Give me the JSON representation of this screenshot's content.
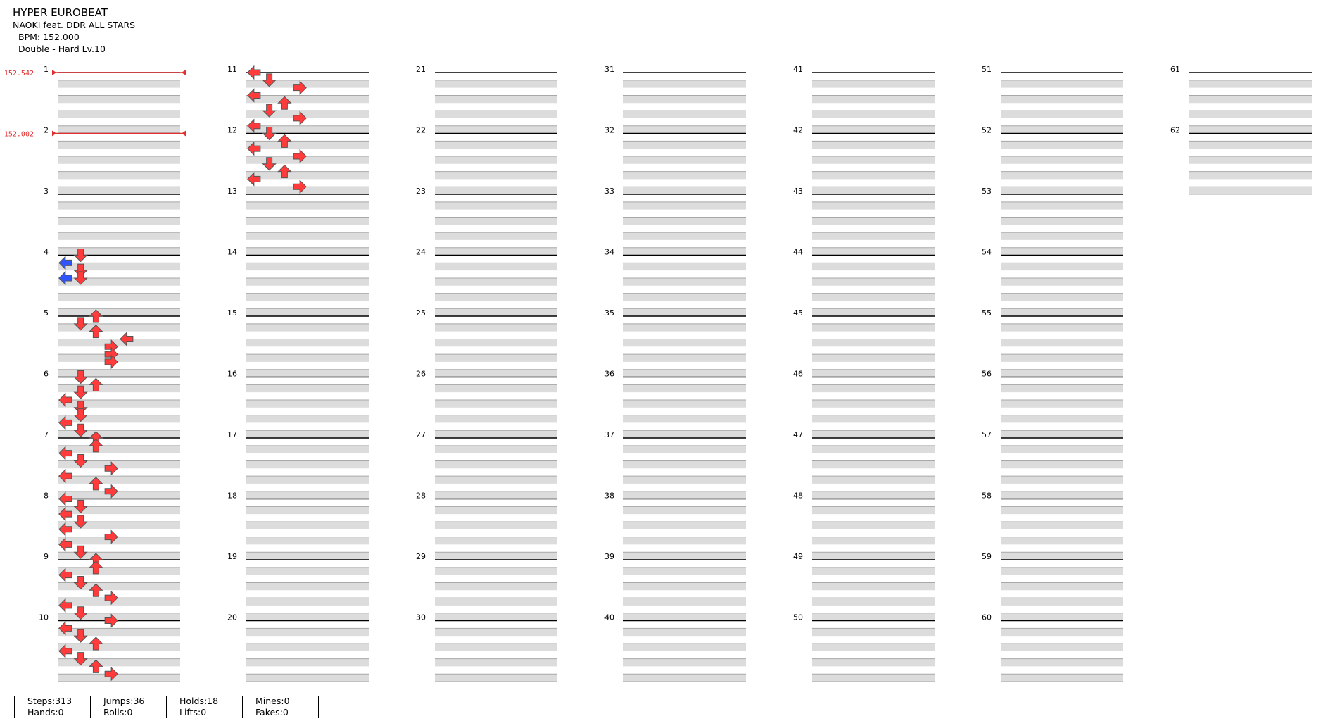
{
  "song": {
    "title": "HYPER EUROBEAT",
    "artist": "NAOKI feat. DDR ALL STARS",
    "bpm_text": "BPM: 152.000",
    "difficulty_text": "Double - Hard  Lv.10"
  },
  "bpm_changes": [
    {
      "measure": 1,
      "label": "152.542"
    },
    {
      "measure": 2,
      "label": "152.002"
    }
  ],
  "stats": [
    {
      "line1": "Steps:313",
      "line2": "Hands:0"
    },
    {
      "line1": "Jumps:36",
      "line2": "Rolls:0"
    },
    {
      "line1": "Holds:18",
      "line2": "Lifts:0"
    },
    {
      "line1": "Mines:0",
      "line2": "Fakes:0"
    }
  ],
  "colors": {
    "quarter": "#ff3b3b",
    "eighth": "#2f55ff",
    "sixteenth": "#ffe23a",
    "hold": "#8fe08f",
    "bpm": "#e03030",
    "stripe": "#dcdcdc"
  },
  "chart_data": {
    "type": "step-chart",
    "measure_count": 62,
    "rows_per_measure": 8,
    "lanes": 8,
    "notes": [
      [
        4,
        0,
        1,
        "q"
      ],
      [
        4,
        1,
        0,
        "e"
      ],
      [
        4,
        2,
        1,
        "q"
      ],
      [
        4,
        3,
        0,
        "e"
      ],
      [
        4,
        3,
        1,
        "q"
      ],
      [
        5,
        0,
        2,
        "q"
      ],
      [
        5,
        1,
        1,
        "q"
      ],
      [
        5,
        2,
        2,
        "q"
      ],
      [
        5,
        3,
        4,
        "q"
      ],
      [
        5,
        4,
        3,
        "q"
      ],
      [
        5,
        5,
        3,
        "q"
      ],
      [
        5,
        6,
        3,
        "q"
      ],
      [
        6,
        0,
        1,
        "q"
      ],
      [
        6,
        1,
        2,
        "q"
      ],
      [
        6,
        2,
        1,
        "q"
      ],
      [
        6,
        3,
        0,
        "q"
      ],
      [
        6,
        4,
        1,
        "q"
      ],
      [
        6,
        5,
        1,
        "q"
      ],
      [
        6,
        6,
        0,
        "q"
      ],
      [
        6,
        7,
        1,
        "q"
      ],
      [
        7,
        0,
        2,
        "q"
      ],
      [
        7,
        1,
        2,
        "q"
      ],
      [
        7,
        2,
        0,
        "q"
      ],
      [
        7,
        3,
        1,
        "q"
      ],
      [
        7,
        4,
        3,
        "q"
      ],
      [
        7,
        5,
        0,
        "q"
      ],
      [
        7,
        6,
        2,
        "q"
      ],
      [
        7,
        7,
        3,
        "q"
      ],
      [
        8,
        0,
        0,
        "q"
      ],
      [
        8,
        1,
        1,
        "q"
      ],
      [
        8,
        2,
        0,
        "q"
      ],
      [
        8,
        3,
        1,
        "q"
      ],
      [
        8,
        4,
        0,
        "q"
      ],
      [
        8,
        5,
        3,
        "q"
      ],
      [
        8,
        6,
        0,
        "q"
      ],
      [
        8,
        7,
        1,
        "q"
      ],
      [
        9,
        0,
        2,
        "q"
      ],
      [
        9,
        1,
        2,
        "q"
      ],
      [
        9,
        2,
        0,
        "q"
      ],
      [
        9,
        3,
        1,
        "q"
      ],
      [
        9,
        4,
        2,
        "q"
      ],
      [
        9,
        5,
        3,
        "q"
      ],
      [
        9,
        6,
        0,
        "q"
      ],
      [
        9,
        7,
        1,
        "q"
      ],
      [
        10,
        0,
        3,
        "q"
      ],
      [
        10,
        1,
        0,
        "q"
      ],
      [
        10,
        2,
        1,
        "q"
      ],
      [
        10,
        3,
        2,
        "q"
      ],
      [
        10,
        4,
        0,
        "q"
      ],
      [
        10,
        5,
        1,
        "q"
      ],
      [
        10,
        6,
        2,
        "q"
      ],
      [
        10,
        7,
        3,
        "q"
      ],
      [
        11,
        0,
        0,
        "q"
      ],
      [
        11,
        1,
        1,
        "q"
      ],
      [
        11,
        2,
        3,
        "q"
      ],
      [
        11,
        3,
        0,
        "q"
      ],
      [
        11,
        4,
        2,
        "q"
      ],
      [
        11,
        5,
        1,
        "q"
      ],
      [
        11,
        6,
        3,
        "q"
      ],
      [
        11,
        7,
        0,
        "q"
      ],
      [
        12,
        0,
        1,
        "q"
      ],
      [
        12,
        1,
        2,
        "q"
      ],
      [
        12,
        2,
        0,
        "q"
      ],
      [
        12,
        3,
        3,
        "q"
      ],
      [
        12,
        4,
        1,
        "q"
      ],
      [
        12,
        5,
        2,
        "q"
      ],
      [
        12,
        6,
        0,
        "q"
      ],
      [
        12,
        7,
        3,
        "q"
      ]
    ]
  }
}
